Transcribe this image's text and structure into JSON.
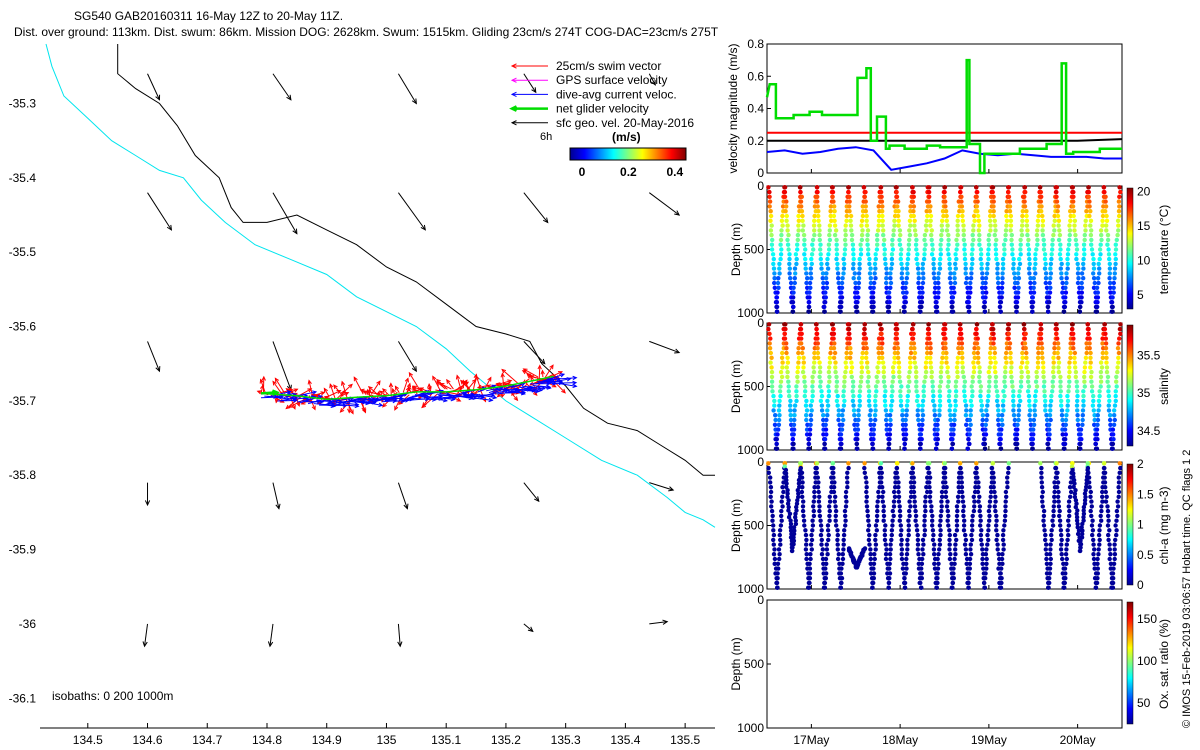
{
  "header": {
    "line1": "SG540 GAB20160311 16-May 12Z to 20-May 11Z.",
    "line2": "Dist. over ground: 113km. Dist. swum: 86km. Mission DOG: 2628km. Swum: 1515km. Gliding 23cm/s 274T COG-DAC=23cm/s 275T"
  },
  "credit": "© IMOS 15-Feb-2019 03:06:57 Hobart time. QC flags 1  2",
  "colors": {
    "swim": "#ff0000",
    "gps": "#ff00ff",
    "dac": "#0000ff",
    "net": "#00dd00",
    "sfc": "#000000",
    "isobath_200": "#00e5ee",
    "isobath_1000": "#000000"
  },
  "map": {
    "xticks": [
      "134.5",
      "134.6",
      "134.7",
      "134.8",
      "134.9",
      "135",
      "135.1",
      "135.2",
      "135.3",
      "135.4",
      "135.5"
    ],
    "yticks": [
      "-35.3",
      "-35.4",
      "-35.5",
      "-35.6",
      "-35.7",
      "-35.8",
      "-35.9",
      "-36",
      "-36.1"
    ],
    "xlim": [
      134.42,
      135.55
    ],
    "ylim": [
      -36.14,
      -35.22
    ],
    "isobaths_label": "isobaths: 0   200   1000m",
    "legend": {
      "items": [
        {
          "key": "swim",
          "label": "25cm/s swim vector"
        },
        {
          "key": "gps",
          "label": "GPS surface velocity"
        },
        {
          "key": "dac",
          "label": "dive-avg current veloc."
        },
        {
          "key": "net",
          "label": "net glider velocity"
        },
        {
          "key": "sfc",
          "label": "sfc geo. vel. 20-May-2016"
        }
      ],
      "scale_label": "6h",
      "units_label": "(m/s)",
      "colorbar_ticks": [
        "0",
        "0.2",
        "0.4"
      ],
      "colorbar_range": [
        0,
        0.5
      ]
    },
    "isobath_200": [
      [
        134.43,
        -35.22
      ],
      [
        134.44,
        -35.25
      ],
      [
        134.46,
        -35.29
      ],
      [
        134.5,
        -35.32
      ],
      [
        134.54,
        -35.35
      ],
      [
        134.58,
        -35.37
      ],
      [
        134.62,
        -35.39
      ],
      [
        134.66,
        -35.4
      ],
      [
        134.69,
        -35.43
      ],
      [
        134.73,
        -35.46
      ],
      [
        134.78,
        -35.49
      ],
      [
        134.84,
        -35.51
      ],
      [
        134.9,
        -35.53
      ],
      [
        134.95,
        -35.56
      ],
      [
        135.0,
        -35.58
      ],
      [
        135.05,
        -35.6
      ],
      [
        135.1,
        -35.63
      ],
      [
        135.14,
        -35.66
      ],
      [
        135.2,
        -35.7
      ],
      [
        135.24,
        -35.72
      ],
      [
        135.3,
        -35.75
      ],
      [
        135.36,
        -35.78
      ],
      [
        135.42,
        -35.8
      ],
      [
        135.47,
        -35.83
      ],
      [
        135.5,
        -35.85
      ],
      [
        135.53,
        -35.86
      ],
      [
        135.55,
        -35.87
      ]
    ],
    "isobath_1000": [
      [
        134.55,
        -35.22
      ],
      [
        134.55,
        -35.26
      ],
      [
        134.58,
        -35.28
      ],
      [
        134.62,
        -35.3
      ],
      [
        134.65,
        -35.33
      ],
      [
        134.68,
        -35.37
      ],
      [
        134.72,
        -35.4
      ],
      [
        134.74,
        -35.44
      ],
      [
        134.76,
        -35.46
      ],
      [
        134.8,
        -35.46
      ],
      [
        134.85,
        -35.45
      ],
      [
        134.9,
        -35.47
      ],
      [
        134.95,
        -35.49
      ],
      [
        135.0,
        -35.52
      ],
      [
        135.05,
        -35.54
      ],
      [
        135.1,
        -35.57
      ],
      [
        135.15,
        -35.6
      ],
      [
        135.2,
        -35.61
      ],
      [
        135.24,
        -35.62
      ],
      [
        135.26,
        -35.65
      ],
      [
        135.3,
        -35.68
      ],
      [
        135.33,
        -35.71
      ],
      [
        135.37,
        -35.73
      ],
      [
        135.42,
        -35.74
      ],
      [
        135.46,
        -35.76
      ],
      [
        135.5,
        -35.78
      ],
      [
        135.53,
        -35.8
      ],
      [
        135.55,
        -35.8
      ]
    ],
    "track": [
      [
        134.79,
        -35.69
      ],
      [
        134.85,
        -35.693
      ],
      [
        134.9,
        -35.698
      ],
      [
        134.95,
        -35.695
      ],
      [
        135.0,
        -35.693
      ],
      [
        135.05,
        -35.688
      ],
      [
        135.1,
        -35.688
      ],
      [
        135.15,
        -35.685
      ],
      [
        135.2,
        -35.68
      ],
      [
        135.25,
        -35.672
      ],
      [
        135.28,
        -35.667
      ]
    ],
    "sfc_arrows": [
      {
        "lon": 134.6,
        "lat": -35.26,
        "dlon": 0.02,
        "dlat": -0.035
      },
      {
        "lon": 134.81,
        "lat": -35.26,
        "dlon": 0.03,
        "dlat": -0.035
      },
      {
        "lon": 135.02,
        "lat": -35.26,
        "dlon": 0.03,
        "dlat": -0.04
      },
      {
        "lon": 135.23,
        "lat": -35.26,
        "dlon": 0.02,
        "dlat": -0.025
      },
      {
        "lon": 135.44,
        "lat": -35.26,
        "dlon": 0.01,
        "dlat": -0.015
      },
      {
        "lon": 134.6,
        "lat": -35.42,
        "dlon": 0.04,
        "dlat": -0.05
      },
      {
        "lon": 134.81,
        "lat": -35.42,
        "dlon": 0.04,
        "dlat": -0.055
      },
      {
        "lon": 135.02,
        "lat": -35.42,
        "dlon": 0.045,
        "dlat": -0.05
      },
      {
        "lon": 135.23,
        "lat": -35.42,
        "dlon": 0.04,
        "dlat": -0.04
      },
      {
        "lon": 135.44,
        "lat": -35.42,
        "dlon": 0.05,
        "dlat": -0.03
      },
      {
        "lon": 134.6,
        "lat": -35.62,
        "dlon": 0.02,
        "dlat": -0.04
      },
      {
        "lon": 134.81,
        "lat": -35.62,
        "dlon": 0.03,
        "dlat": -0.065
      },
      {
        "lon": 135.02,
        "lat": -35.62,
        "dlon": 0.03,
        "dlat": -0.04
      },
      {
        "lon": 135.23,
        "lat": -35.62,
        "dlon": 0.035,
        "dlat": -0.03
      },
      {
        "lon": 135.44,
        "lat": -35.62,
        "dlon": 0.05,
        "dlat": -0.015
      },
      {
        "lon": 134.6,
        "lat": -35.81,
        "dlon": 0.0,
        "dlat": -0.03
      },
      {
        "lon": 134.81,
        "lat": -35.81,
        "dlon": 0.01,
        "dlat": -0.035
      },
      {
        "lon": 135.02,
        "lat": -35.81,
        "dlon": 0.015,
        "dlat": -0.035
      },
      {
        "lon": 135.23,
        "lat": -35.81,
        "dlon": 0.025,
        "dlat": -0.025
      },
      {
        "lon": 135.44,
        "lat": -35.81,
        "dlon": 0.04,
        "dlat": -0.01
      },
      {
        "lon": 134.6,
        "lat": -36.0,
        "dlon": -0.005,
        "dlat": -0.03
      },
      {
        "lon": 134.81,
        "lat": -36.0,
        "dlon": -0.005,
        "dlat": -0.03
      },
      {
        "lon": 135.02,
        "lat": -36.0,
        "dlon": 0.003,
        "dlat": -0.03
      },
      {
        "lon": 135.23,
        "lat": -36.0,
        "dlon": 0.015,
        "dlat": -0.01
      },
      {
        "lon": 135.44,
        "lat": -36.0,
        "dlon": 0.03,
        "dlat": 0.003
      }
    ]
  },
  "chart_data": [
    {
      "type": "line",
      "ylabel": "velocity magnitude (m/s)",
      "ylim": [
        0,
        0.8
      ],
      "yticks": [
        "0",
        "0.2",
        "0.4",
        "0.6",
        "0.8"
      ],
      "xlim": [
        16.5,
        20.5
      ],
      "series": [
        {
          "key": "swim",
          "x": [
            16.5,
            20.5
          ],
          "y": [
            0.25,
            0.25
          ]
        },
        {
          "key": "sfc",
          "x": [
            16.5,
            17.5,
            18.0,
            18.5,
            19.0,
            19.5,
            20.0,
            20.5
          ],
          "y": [
            0.2,
            0.2,
            0.2,
            0.2,
            0.2,
            0.2,
            0.2,
            0.21
          ]
        },
        {
          "key": "dac",
          "x": [
            16.5,
            16.7,
            16.9,
            17.1,
            17.3,
            17.5,
            17.7,
            17.9,
            18.1,
            18.3,
            18.5,
            18.7,
            18.9,
            19.1,
            19.3,
            19.5,
            19.7,
            19.9,
            20.1,
            20.3,
            20.5
          ],
          "y": [
            0.13,
            0.14,
            0.12,
            0.13,
            0.15,
            0.16,
            0.14,
            0.02,
            0.04,
            0.06,
            0.09,
            0.14,
            0.12,
            0.11,
            0.12,
            0.11,
            0.1,
            0.1,
            0.1,
            0.09,
            0.09
          ]
        },
        {
          "key": "net",
          "x": [
            16.5,
            16.53,
            16.55,
            16.6,
            16.6,
            16.8,
            16.8,
            16.98,
            16.98,
            17.12,
            17.12,
            17.52,
            17.52,
            17.62,
            17.62,
            17.67,
            17.67,
            17.74,
            17.74,
            17.84,
            17.84,
            17.88,
            17.88,
            18.05,
            18.05,
            18.3,
            18.3,
            18.45,
            18.45,
            18.75,
            18.75,
            18.78,
            18.78,
            18.9,
            18.9,
            18.95,
            18.95,
            19.35,
            19.35,
            19.65,
            19.65,
            19.82,
            19.82,
            19.87,
            19.87,
            19.95,
            19.95,
            20.25,
            20.25,
            20.5
          ],
          "y": [
            0.47,
            0.55,
            0.55,
            0.55,
            0.34,
            0.34,
            0.36,
            0.36,
            0.38,
            0.38,
            0.36,
            0.36,
            0.59,
            0.59,
            0.65,
            0.65,
            0.2,
            0.2,
            0.35,
            0.35,
            0.15,
            0.15,
            0.17,
            0.17,
            0.15,
            0.15,
            0.17,
            0.17,
            0.16,
            0.16,
            0.7,
            0.7,
            0.18,
            0.18,
            0.0,
            0.0,
            0.12,
            0.12,
            0.15,
            0.15,
            0.18,
            0.18,
            0.68,
            0.68,
            0.12,
            0.12,
            0.13,
            0.13,
            0.15,
            0.15
          ]
        }
      ]
    },
    {
      "type": "scatter",
      "ylabel": "Depth (m)",
      "cbar_label": "temperature (°C)",
      "cbar_ticks": [
        "5",
        "10",
        "15",
        "20"
      ],
      "cbar_range": [
        3,
        20.5
      ],
      "ylim": [
        0,
        1000
      ],
      "yticks": [
        "0",
        "500",
        "1000"
      ]
    },
    {
      "type": "scatter",
      "ylabel": "Depth (m)",
      "cbar_label": "salinity",
      "cbar_ticks": [
        "34.5",
        "35",
        "35.5"
      ],
      "cbar_range": [
        34.3,
        35.9
      ],
      "ylim": [
        0,
        1000
      ],
      "yticks": [
        "0",
        "500",
        "1000"
      ]
    },
    {
      "type": "scatter",
      "ylabel": "Depth (m)",
      "cbar_label": "chl-a (mg m-3)",
      "cbar_ticks": [
        "0",
        "0.5",
        "1",
        "1.5",
        "2"
      ],
      "cbar_range": [
        0,
        2
      ],
      "ylim": [
        0,
        1000
      ],
      "yticks": [
        "0",
        "500",
        "1000"
      ]
    },
    {
      "type": "scatter",
      "ylabel": "Depth (m)",
      "cbar_label": "Ox. sat. ratio (%)",
      "cbar_ticks": [
        "50",
        "100",
        "150"
      ],
      "cbar_range": [
        25,
        170
      ],
      "ylim": [
        0,
        1000
      ],
      "yticks": [
        "0",
        "500",
        "1000"
      ]
    }
  ],
  "time_axis": {
    "labels": [
      "17May",
      "18May",
      "19May",
      "20May"
    ]
  }
}
